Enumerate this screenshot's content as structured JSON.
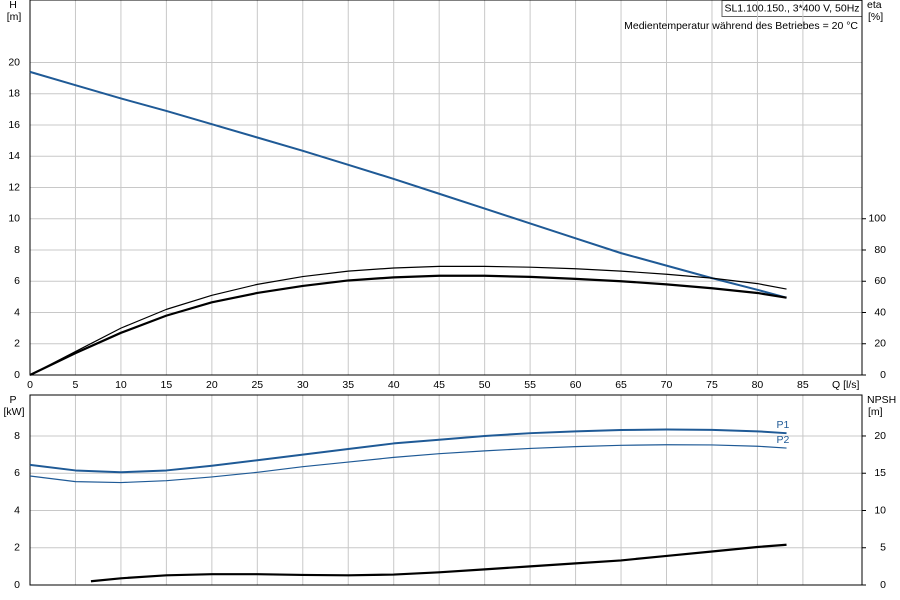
{
  "chart_data": [
    {
      "type": "line",
      "y_label": "H",
      "y_unit": "[m]",
      "y2_label": "eta",
      "y2_unit": "[%]",
      "x_label": "Q [l/s]",
      "title": "SL1.100.150., 3*400 V, 50Hz",
      "subtitle": "Medientemperatur während des Betriebes = 20 °C",
      "xlim": [
        0,
        91.5
      ],
      "xticks": [
        0,
        5,
        10,
        15,
        20,
        25,
        30,
        35,
        40,
        45,
        50,
        55,
        60,
        65,
        70,
        75,
        80,
        85
      ],
      "xtick_labels": true,
      "ylim": [
        0,
        24
      ],
      "yticks": [
        0,
        2,
        4,
        6,
        8,
        10,
        12,
        14,
        16,
        18,
        20
      ],
      "y2lim": [
        0,
        240
      ],
      "y2ticks": [
        0,
        20,
        40,
        60,
        80,
        100
      ],
      "grid": true,
      "series": [
        {
          "color": "#1f5a96",
          "width": 2,
          "x": [
            0,
            5,
            10,
            15,
            20,
            25,
            30,
            35,
            40,
            45,
            50,
            55,
            60,
            65,
            70,
            75,
            80,
            83.2
          ],
          "values": [
            19.4,
            18.55,
            17.7,
            16.9,
            16.05,
            15.2,
            14.35,
            13.45,
            12.55,
            11.6,
            10.65,
            9.7,
            8.75,
            7.8,
            7.0,
            6.2,
            5.45,
            4.95
          ]
        },
        {
          "color": "#000000",
          "width": 2.2,
          "axis": "y2",
          "x": [
            0,
            5,
            10,
            15,
            20,
            25,
            30,
            35,
            40,
            45,
            50,
            55,
            60,
            65,
            70,
            75,
            80,
            83.2
          ],
          "values": [
            0,
            14,
            27,
            38,
            46.5,
            52.5,
            57,
            60.5,
            62.5,
            63.5,
            63.5,
            62.8,
            61.5,
            60,
            58,
            55.5,
            52.5,
            49.5
          ]
        },
        {
          "color": "#000000",
          "width": 1.2,
          "axis": "y2",
          "x": [
            0,
            5,
            10,
            15,
            20,
            25,
            30,
            35,
            40,
            45,
            50,
            55,
            60,
            65,
            70,
            75,
            80,
            83.2
          ],
          "values": [
            0,
            15,
            30,
            42,
            51,
            58,
            63,
            66.5,
            68.5,
            69.5,
            69.5,
            69,
            68,
            66.5,
            64.5,
            62,
            58.5,
            55
          ]
        }
      ]
    },
    {
      "type": "line",
      "y_label": "P",
      "y_unit": "[kW]",
      "y2_label": "NPSH",
      "y2_unit": "[m]",
      "xlim": [
        0,
        91.5
      ],
      "xticks": [
        0,
        5,
        10,
        15,
        20,
        25,
        30,
        35,
        40,
        45,
        50,
        55,
        60,
        65,
        70,
        75,
        80,
        85
      ],
      "xtick_labels": false,
      "ylim": [
        0,
        10.2
      ],
      "yticks": [
        0,
        2,
        4,
        6,
        8
      ],
      "y2lim": [
        0,
        25.5
      ],
      "y2ticks": [
        0,
        5,
        10,
        15,
        20
      ],
      "grid": true,
      "series": [
        {
          "name": "P1",
          "color": "#1f5a96",
          "width": 2,
          "x": [
            0,
            5,
            10,
            15,
            20,
            25,
            30,
            35,
            40,
            45,
            50,
            55,
            60,
            65,
            70,
            75,
            80,
            83.2
          ],
          "values": [
            6.45,
            6.15,
            6.05,
            6.15,
            6.4,
            6.7,
            7.0,
            7.3,
            7.6,
            7.8,
            8.0,
            8.15,
            8.25,
            8.32,
            8.35,
            8.33,
            8.25,
            8.15
          ]
        },
        {
          "name": "P2",
          "color": "#1f5a96",
          "width": 1.2,
          "x": [
            0,
            5,
            10,
            15,
            20,
            25,
            30,
            35,
            40,
            45,
            50,
            55,
            60,
            65,
            70,
            75,
            80,
            83.2
          ],
          "values": [
            5.85,
            5.55,
            5.5,
            5.6,
            5.8,
            6.05,
            6.35,
            6.6,
            6.85,
            7.05,
            7.2,
            7.33,
            7.43,
            7.5,
            7.53,
            7.52,
            7.45,
            7.35
          ]
        },
        {
          "color": "#000000",
          "width": 2.2,
          "axis": "y2",
          "x": [
            6.7,
            10,
            15,
            20,
            25,
            30,
            35,
            40,
            45,
            50,
            55,
            60,
            65,
            70,
            75,
            80,
            83.2
          ],
          "values": [
            0.5,
            0.9,
            1.3,
            1.45,
            1.45,
            1.35,
            1.3,
            1.4,
            1.7,
            2.1,
            2.5,
            2.9,
            3.3,
            3.9,
            4.5,
            5.1,
            5.4
          ]
        }
      ]
    }
  ]
}
